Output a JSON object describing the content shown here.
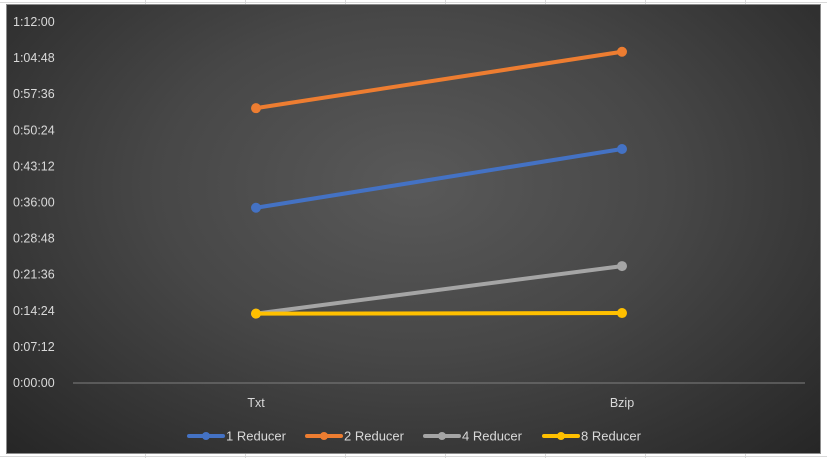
{
  "chart_data": {
    "type": "line",
    "categories": [
      "Txt",
      "Bzip"
    ],
    "y_ticks": [
      "0:00:00",
      "0:07:12",
      "0:14:24",
      "0:21:36",
      "0:28:48",
      "0:36:00",
      "0:43:12",
      "0:50:24",
      "0:57:36",
      "1:04:48",
      "1:12:00"
    ],
    "ylim_seconds": [
      0,
      4320
    ],
    "y_unit": "h:mm:ss",
    "grid": false,
    "legend_position": "bottom",
    "series": [
      {
        "name": "1 Reducer",
        "color": "#4472c4",
        "values": [
          "0:34:57",
          "0:46:40"
        ],
        "values_seconds": [
          2097,
          2800
        ]
      },
      {
        "name": "2 Reducer",
        "color": "#ed7d31",
        "values": [
          "0:54:49",
          "1:06:04"
        ],
        "values_seconds": [
          3289,
          3964
        ]
      },
      {
        "name": "4 Reducer",
        "color": "#a5a5a5",
        "values": [
          "0:13:50",
          "0:23:19"
        ],
        "values_seconds": [
          830,
          1399
        ]
      },
      {
        "name": "8 Reducer",
        "color": "#ffc000",
        "values": [
          "0:13:50",
          "0:13:57"
        ],
        "values_seconds": [
          830,
          837
        ]
      }
    ]
  }
}
